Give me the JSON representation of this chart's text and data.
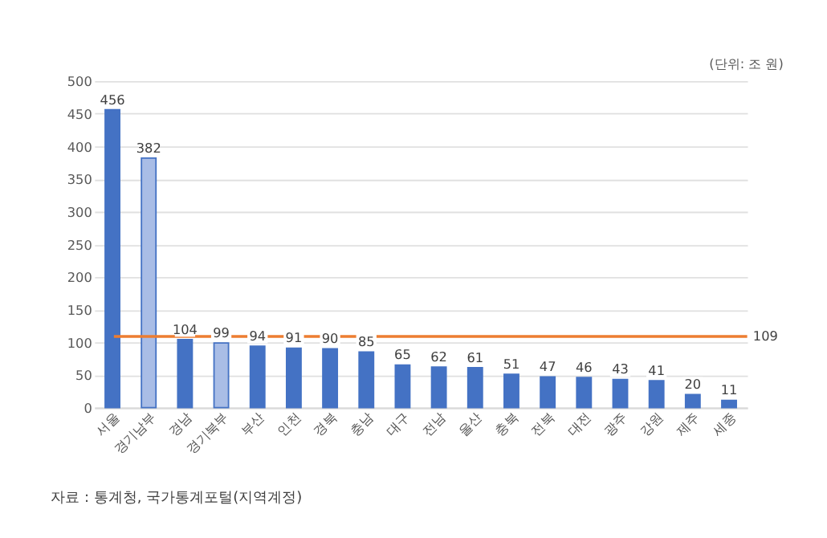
{
  "chart_data": {
    "type": "bar",
    "categories": [
      "서울",
      "경기남부",
      "경남",
      "경기북부",
      "부산",
      "인천",
      "경북",
      "충남",
      "대구",
      "전남",
      "울산",
      "충북",
      "전북",
      "대전",
      "광주",
      "강원",
      "제주",
      "세종"
    ],
    "values": [
      456,
      382,
      104,
      99,
      94,
      91,
      90,
      85,
      65,
      62,
      61,
      51,
      47,
      46,
      43,
      41,
      20,
      11
    ],
    "colors": [
      "#4472c4",
      "#a9bde6",
      "#4472c4",
      "#a9bde6",
      "#4472c4",
      "#4472c4",
      "#4472c4",
      "#4472c4",
      "#4472c4",
      "#4472c4",
      "#4472c4",
      "#4472c4",
      "#4472c4",
      "#4472c4",
      "#4472c4",
      "#4472c4",
      "#4472c4",
      "#4472c4"
    ],
    "ylim": [
      0,
      500
    ],
    "yticks": [
      0,
      50,
      100,
      150,
      200,
      250,
      300,
      350,
      400,
      450,
      500
    ],
    "grid": "y",
    "data_labels": true,
    "ref_lines": [
      {
        "axis": "y",
        "value": 109,
        "label": "109",
        "color": "#ed7d31"
      }
    ],
    "annotations": [
      "(단위: 조 원)",
      "자료 : 통계청, 국가통계포털(지역계정)"
    ]
  }
}
